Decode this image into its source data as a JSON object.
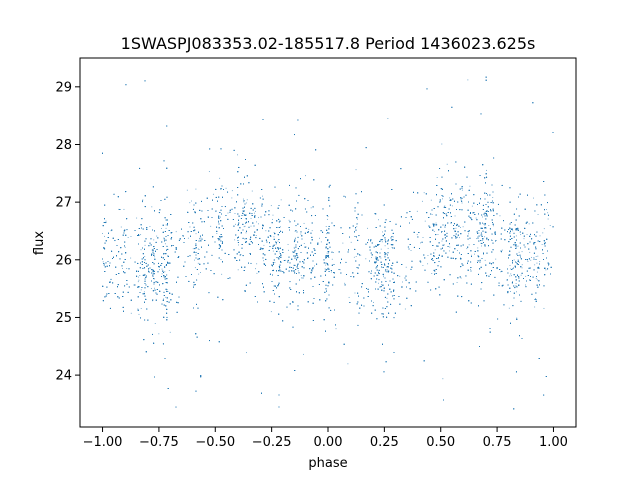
{
  "chart_data": {
    "type": "scatter",
    "title": "1SWASPJ083353.02-185517.8 Period 1436023.625s",
    "xlabel": "phase",
    "ylabel": "flux",
    "xlim": [
      -1.1,
      1.1
    ],
    "ylim": [
      23.1,
      29.5
    ],
    "xticks": [
      -1.0,
      -0.75,
      -0.5,
      -0.25,
      0.0,
      0.25,
      0.5,
      0.75,
      1.0
    ],
    "xtick_labels": [
      "−1.00",
      "−0.75",
      "−0.50",
      "−0.25",
      "0.00",
      "0.25",
      "0.50",
      "0.75",
      "1.00"
    ],
    "yticks": [
      24,
      25,
      26,
      27,
      28,
      29
    ],
    "ytick_labels": [
      "24",
      "25",
      "26",
      "27",
      "28",
      "29"
    ],
    "grid": false,
    "marker_color": "#1f77b4",
    "phase_range": [
      -1.0,
      1.0
    ],
    "trend_phase": [
      -1.0,
      -0.9,
      -0.8,
      -0.7,
      -0.6,
      -0.5,
      -0.4,
      -0.3,
      -0.2,
      -0.1,
      0.0,
      0.1,
      0.2,
      0.3,
      0.4,
      0.5,
      0.6,
      0.7,
      0.8,
      0.9,
      1.0
    ],
    "trend_flux": [
      26.2,
      26.0,
      25.9,
      25.9,
      26.2,
      26.5,
      26.6,
      26.4,
      26.1,
      26.0,
      26.0,
      26.0,
      25.9,
      25.9,
      26.2,
      26.5,
      26.6,
      26.4,
      26.1,
      26.0,
      26.2
    ],
    "core_scatter_sd": 0.45,
    "flux_min": 23.4,
    "flux_max": 29.2,
    "n_points": 14000
  }
}
